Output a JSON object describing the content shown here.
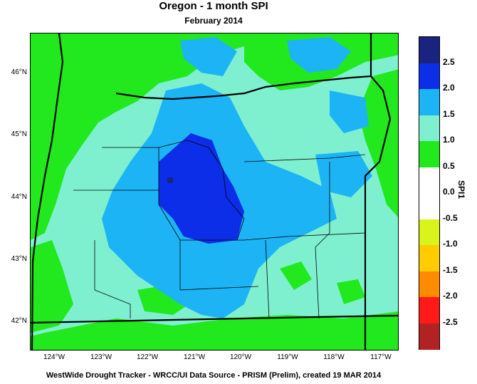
{
  "header": {
    "title": "Oregon - 1 month SPI",
    "subtitle": "February 2014"
  },
  "map": {
    "lat_labels": [
      "46°N",
      "45°N",
      "44°N",
      "43°N",
      "42°N"
    ],
    "lon_labels": [
      "124°W",
      "123°W",
      "122°W",
      "121°W",
      "120°W",
      "119°W",
      "118°W",
      "117°W"
    ]
  },
  "colorbar": {
    "title": "SPI1",
    "labels": [
      "2.5",
      "2.0",
      "1.5",
      "1.0",
      "0.5",
      "0.0",
      "-0.5",
      "-1.0",
      "-1.5",
      "-2.0",
      "-2.5"
    ],
    "colors": [
      "#1a237e",
      "#0d2ee8",
      "#1cb4f5",
      "#7ff0cf",
      "#22e81e",
      "#ffffff",
      "#ffffff",
      "#d9f41a",
      "#ffcc00",
      "#ff8c00",
      "#ff1a1a",
      "#b22222"
    ]
  },
  "footer": {
    "credit": "WestWide Drought Tracker - WRCC/UI  Data Source - PRISM (Prelim), created 19 MAR 2014"
  }
}
